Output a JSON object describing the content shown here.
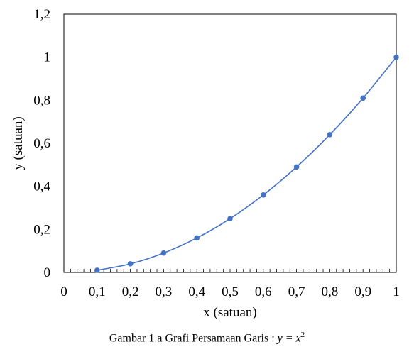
{
  "chart_data": {
    "type": "scatter",
    "smooth_line": true,
    "x": [
      0.1,
      0.2,
      0.3,
      0.4,
      0.5,
      0.6,
      0.7,
      0.8,
      0.9,
      1.0
    ],
    "y": [
      0.01,
      0.04,
      0.09,
      0.16,
      0.25,
      0.36,
      0.49,
      0.64,
      0.81,
      1.0
    ],
    "xlabel": "x (satuan)",
    "ylabel": "y (satuan)",
    "xlim": [
      0,
      1
    ],
    "ylim": [
      0,
      1.2
    ],
    "x_ticks": [
      "0",
      "0,1",
      "0,2",
      "0,3",
      "0,4",
      "0,5",
      "0,6",
      "0,7",
      "0,8",
      "0,9",
      "1"
    ],
    "y_ticks": [
      "0",
      "0,2",
      "0,4",
      "0,6",
      "0,8",
      "1",
      "1,2"
    ],
    "grid": false,
    "color": "#4472C4"
  },
  "caption": {
    "prefix": "Gambar 1.a Grafi Persamaan Garis : ",
    "equation_lhs": "y = x",
    "equation_exp": "2"
  }
}
